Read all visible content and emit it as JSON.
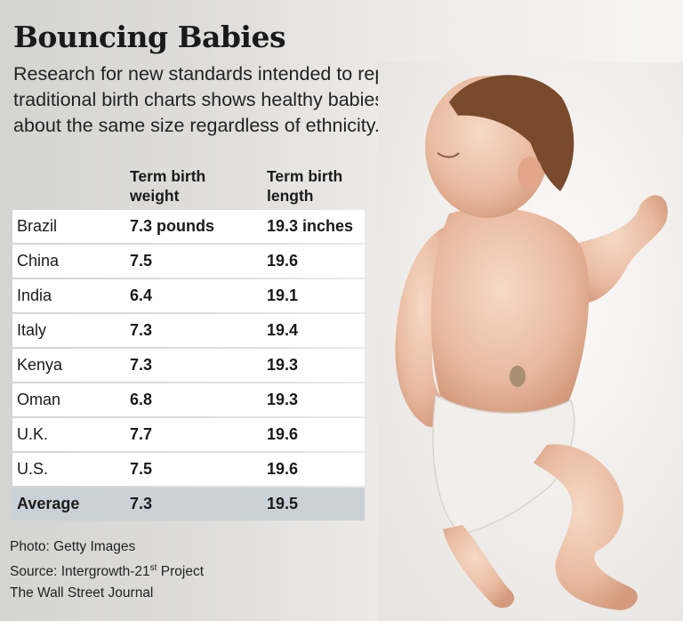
{
  "title": "Bouncing Babies",
  "subtitle": "Research for new standards intended to replace traditional birth charts shows healthy babies are about the same size regardless of ethnicity.",
  "chart_data": {
    "type": "table",
    "columns": [
      "",
      "Term birth weight",
      "Term birth length"
    ],
    "rows": [
      {
        "country": "Brazil",
        "weight": "7.3 pounds",
        "length": "19.3 inches"
      },
      {
        "country": "China",
        "weight": "7.5",
        "length": "19.6"
      },
      {
        "country": "India",
        "weight": "6.4",
        "length": "19.1"
      },
      {
        "country": "Italy",
        "weight": "7.3",
        "length": "19.4"
      },
      {
        "country": "Kenya",
        "weight": "7.3",
        "length": "19.3"
      },
      {
        "country": "Oman",
        "weight": "6.8",
        "length": "19.3"
      },
      {
        "country": "U.K.",
        "weight": "7.7",
        "length": "19.6"
      },
      {
        "country": "U.S.",
        "weight": "7.5",
        "length": "19.6"
      }
    ],
    "average": {
      "label": "Average",
      "weight": "7.3",
      "length": "19.5"
    }
  },
  "credits": {
    "photo": "Photo: Getty Images",
    "source_prefix": "Source: Intergrowth-21",
    "source_sup": "st",
    "source_suffix": " Project",
    "publisher": "The Wall Street Journal"
  },
  "colors": {
    "average_row": "#c9d1d6",
    "row_bg": "#ffffff"
  }
}
